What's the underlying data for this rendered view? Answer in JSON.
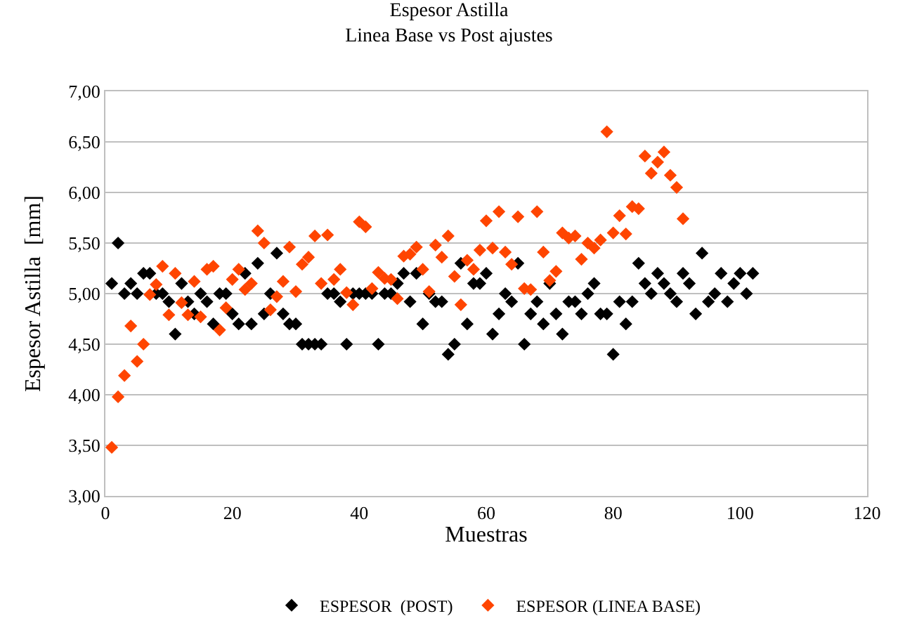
{
  "chart_data": {
    "type": "scatter",
    "title": "Espesor Astilla",
    "subtitle": "Linea Base vs Post ajustes",
    "xlabel": "Muestras",
    "ylabel": "Espesor Astilla  [mm]",
    "xlim": [
      0,
      120
    ],
    "xticks": [
      0,
      20,
      40,
      60,
      80,
      100,
      120
    ],
    "ylim": [
      3,
      7
    ],
    "yticks": [
      {
        "value": 3,
        "label": "3,00"
      },
      {
        "value": 3.5,
        "label": "3,50"
      },
      {
        "value": 4,
        "label": "4,00"
      },
      {
        "value": 4.5,
        "label": "4,50"
      },
      {
        "value": 5,
        "label": "5,00"
      },
      {
        "value": 5.5,
        "label": "5,50"
      },
      {
        "value": 6,
        "label": "6,00"
      },
      {
        "value": 6.5,
        "label": "6,50"
      },
      {
        "value": 7,
        "label": "7,00"
      }
    ],
    "grid": "y",
    "legend": "bottom",
    "marker": "diamond",
    "series": [
      {
        "name": "ESPESOR  (POST)",
        "color": "#000000",
        "x": [
          1,
          2,
          3,
          4,
          5,
          6,
          7,
          8,
          9,
          10,
          11,
          12,
          13,
          14,
          15,
          16,
          17,
          18,
          19,
          20,
          21,
          22,
          23,
          24,
          25,
          26,
          27,
          28,
          29,
          30,
          31,
          32,
          33,
          34,
          35,
          36,
          37,
          38,
          39,
          40,
          41,
          42,
          43,
          44,
          45,
          46,
          47,
          48,
          49,
          50,
          51,
          52,
          53,
          54,
          55,
          56,
          57,
          58,
          59,
          60,
          61,
          62,
          63,
          64,
          65,
          66,
          67,
          68,
          69,
          70,
          71,
          72,
          73,
          74,
          75,
          76,
          77,
          78,
          79,
          80,
          81,
          82,
          83,
          84,
          85,
          86,
          87,
          88,
          89,
          90,
          91,
          92,
          93,
          94,
          95,
          96,
          97,
          98,
          99,
          100,
          101,
          102
        ],
        "values": [
          5.1,
          5.5,
          5.0,
          5.1,
          5.0,
          5.2,
          5.2,
          5.0,
          5.0,
          4.92,
          4.6,
          5.1,
          4.92,
          4.8,
          5.0,
          4.92,
          4.7,
          5.0,
          5.0,
          4.8,
          4.7,
          5.2,
          4.7,
          5.3,
          4.8,
          5.0,
          5.4,
          4.8,
          4.7,
          4.7,
          4.5,
          4.5,
          4.5,
          4.5,
          5.0,
          5.0,
          4.92,
          4.5,
          5.0,
          5.0,
          5.0,
          5.0,
          4.5,
          5.0,
          5.0,
          5.1,
          5.2,
          4.92,
          5.2,
          4.7,
          5.0,
          4.92,
          4.92,
          4.4,
          4.5,
          5.3,
          4.7,
          5.1,
          5.1,
          5.2,
          4.6,
          4.8,
          5.0,
          4.92,
          5.3,
          4.5,
          4.8,
          4.92,
          4.7,
          5.1,
          4.8,
          4.6,
          4.92,
          4.92,
          4.8,
          5.0,
          5.1,
          4.8,
          4.8,
          4.4,
          4.92,
          4.7,
          4.92,
          5.3,
          5.1,
          5.0,
          5.2,
          5.1,
          5.0,
          4.92,
          5.2,
          5.1,
          4.8,
          5.4,
          4.92,
          5.0,
          5.2,
          4.92,
          5.1,
          5.2,
          5.0,
          5.2
        ]
      },
      {
        "name": "ESPESOR (LINEA BASE)",
        "color": "#ff4500",
        "x": [
          1,
          2,
          3,
          4,
          5,
          6,
          7,
          8,
          9,
          10,
          11,
          12,
          13,
          14,
          15,
          16,
          17,
          18,
          19,
          20,
          21,
          22,
          23,
          24,
          25,
          26,
          27,
          28,
          29,
          30,
          31,
          32,
          33,
          34,
          35,
          36,
          37,
          38,
          39,
          40,
          41,
          42,
          43,
          44,
          45,
          46,
          47,
          48,
          49,
          50,
          51,
          52,
          53,
          54,
          55,
          56,
          57,
          58,
          59,
          60,
          61,
          62,
          63,
          64,
          65,
          66,
          67,
          68,
          69,
          70,
          71,
          72,
          73,
          74,
          75,
          76,
          77,
          78,
          79,
          80,
          81,
          82,
          83,
          84,
          85,
          86,
          87,
          88,
          89,
          90,
          91
        ],
        "values": [
          3.48,
          3.98,
          4.19,
          4.68,
          4.33,
          4.5,
          4.99,
          5.09,
          5.27,
          4.79,
          5.2,
          4.91,
          4.79,
          5.12,
          4.77,
          5.24,
          5.27,
          4.64,
          4.86,
          5.14,
          5.24,
          5.04,
          5.1,
          5.62,
          5.5,
          4.84,
          4.97,
          5.12,
          5.46,
          5.02,
          5.29,
          5.36,
          5.57,
          5.1,
          5.58,
          5.14,
          5.24,
          5.01,
          4.89,
          5.71,
          5.66,
          5.05,
          5.21,
          5.15,
          5.14,
          4.95,
          5.37,
          5.39,
          5.46,
          5.24,
          5.02,
          5.48,
          5.36,
          5.57,
          5.17,
          4.89,
          5.33,
          5.24,
          5.43,
          5.72,
          5.45,
          5.81,
          5.41,
          5.29,
          5.76,
          5.05,
          5.04,
          5.81,
          5.41,
          5.13,
          5.22,
          5.6,
          5.55,
          5.57,
          5.34,
          5.5,
          5.45,
          5.53,
          6.6,
          5.6,
          5.77,
          5.59,
          5.86,
          5.84,
          6.36,
          6.19,
          6.3,
          6.4,
          6.17,
          6.05,
          5.74
        ]
      }
    ]
  }
}
